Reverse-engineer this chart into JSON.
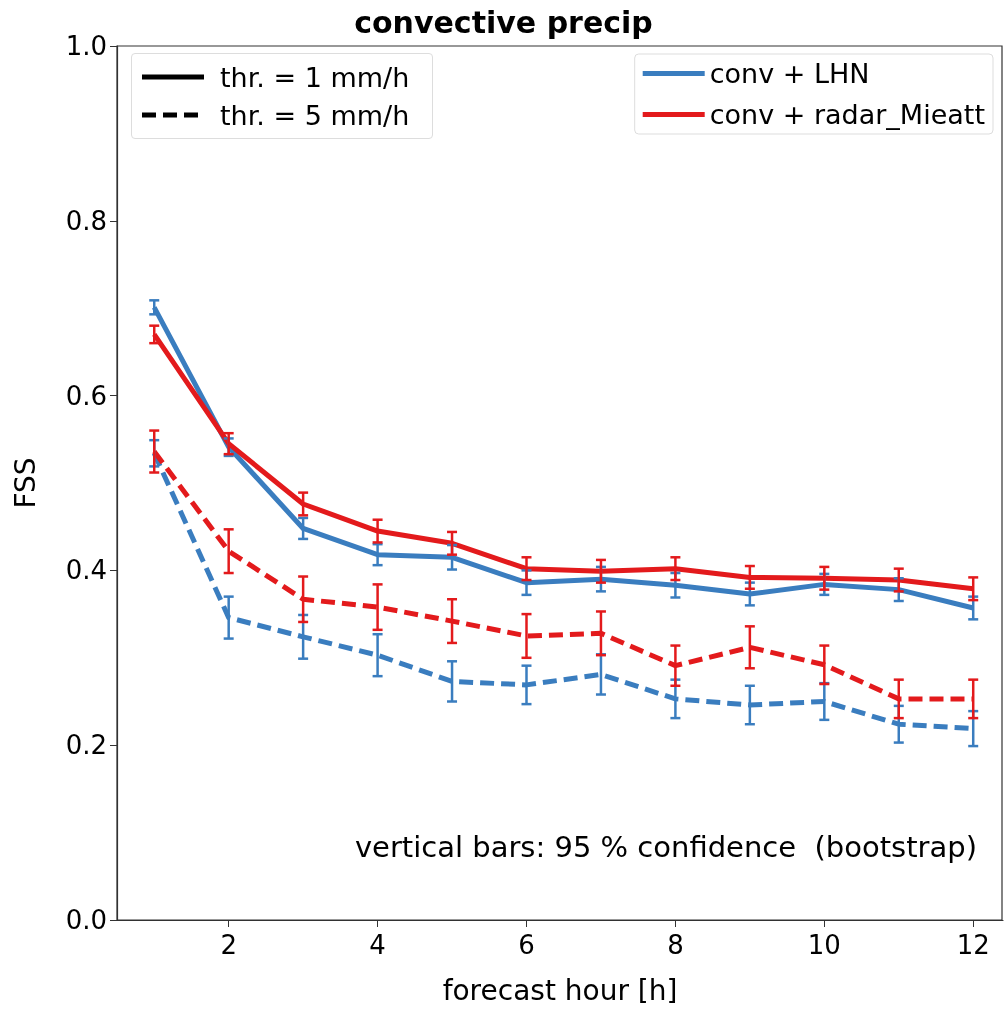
{
  "chart_data": {
    "type": "line",
    "title": "convective precip",
    "xlabel": "forecast hour [h]",
    "ylabel": "FSS",
    "x": [
      1,
      2,
      3,
      4,
      5,
      6,
      7,
      8,
      9,
      10,
      11,
      12
    ],
    "series": [
      {
        "name": "conv + LHN",
        "color": "#3a7dbf",
        "line_style": "solid",
        "values": [
          0.701,
          0.541,
          0.448,
          0.418,
          0.415,
          0.386,
          0.39,
          0.383,
          0.373,
          0.384,
          0.378,
          0.357
        ],
        "errors": [
          0.008,
          0.01,
          0.012,
          0.012,
          0.014,
          0.014,
          0.014,
          0.014,
          0.013,
          0.012,
          0.013,
          0.013
        ]
      },
      {
        "name": "conv + radar_Mieatt",
        "color": "#e31a1c",
        "line_style": "solid",
        "values": [
          0.67,
          0.545,
          0.476,
          0.445,
          0.431,
          0.402,
          0.399,
          0.402,
          0.392,
          0.391,
          0.389,
          0.379
        ],
        "errors": [
          0.01,
          0.012,
          0.013,
          0.013,
          0.013,
          0.013,
          0.013,
          0.013,
          0.013,
          0.013,
          0.013,
          0.013
        ]
      },
      {
        "color": "#3a7dbf",
        "line_style": "dashed",
        "values": [
          0.534,
          0.346,
          0.324,
          0.303,
          0.273,
          0.269,
          0.281,
          0.253,
          0.246,
          0.25,
          0.224,
          0.219
        ],
        "errors": [
          0.015,
          0.024,
          0.025,
          0.024,
          0.023,
          0.022,
          0.023,
          0.022,
          0.022,
          0.021,
          0.021,
          0.02
        ]
      },
      {
        "color": "#e31a1c",
        "line_style": "dashed",
        "values": [
          0.536,
          0.422,
          0.367,
          0.358,
          0.342,
          0.325,
          0.328,
          0.291,
          0.312,
          0.292,
          0.253,
          0.253
        ],
        "errors": [
          0.024,
          0.025,
          0.026,
          0.026,
          0.025,
          0.025,
          0.025,
          0.023,
          0.024,
          0.022,
          0.022,
          0.022
        ]
      }
    ],
    "xlim": [
      0.5,
      12.4
    ],
    "xticks": [
      2,
      4,
      6,
      8,
      10,
      12
    ],
    "ylim": [
      0,
      1
    ],
    "yticks": [
      {
        "value": 0,
        "label": "0.0"
      },
      {
        "value": 0.2,
        "label": "0.2"
      },
      {
        "value": 0.4,
        "label": "0.4"
      },
      {
        "value": 0.6,
        "label": "0.6"
      },
      {
        "value": 0.8,
        "label": "0.8"
      },
      {
        "value": 1,
        "label": "1.0"
      }
    ],
    "grid": false,
    "marker": "none",
    "legend": "top right",
    "annotations": [
      "thr. = 1 mm/h",
      "thr. = 5 mm/h",
      "vertical bars: 95 % confidence  (bootstrap)"
    ]
  }
}
